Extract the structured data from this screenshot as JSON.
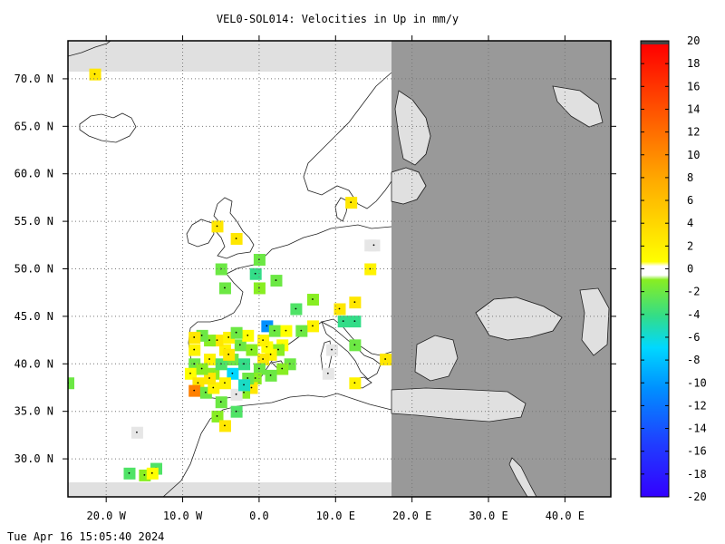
{
  "title": "VEL0-SOL014: Velocities in Up in mm/y",
  "timestamp": "Tue Apr 16 15:05:40 2024",
  "map": {
    "lon_range": [
      -25,
      46
    ],
    "lat_range": [
      26,
      74
    ],
    "lat_ticks": [
      {
        "value": 70,
        "label": "70.0 N"
      },
      {
        "value": 65,
        "label": "65.0 N"
      },
      {
        "value": 60,
        "label": "60.0 N"
      },
      {
        "value": 55,
        "label": "55.0 N"
      },
      {
        "value": 50,
        "label": "50.0 N"
      },
      {
        "value": 45,
        "label": "45.0 N"
      },
      {
        "value": 40,
        "label": "40.0 N"
      },
      {
        "value": 35,
        "label": "35.0 N"
      },
      {
        "value": 30,
        "label": "30.0 N"
      }
    ],
    "lon_ticks": [
      {
        "value": -20,
        "label": "20.0 W"
      },
      {
        "value": -10,
        "label": "10.0 W"
      },
      {
        "value": 0,
        "label": "0.0"
      },
      {
        "value": 10,
        "label": "10.0 E"
      },
      {
        "value": 20,
        "label": "20.0 E"
      },
      {
        "value": 30,
        "label": "30.0 E"
      },
      {
        "value": 40,
        "label": "40.0 E"
      }
    ],
    "grid": "dotted",
    "colors": {
      "land": "#e0e0e0",
      "no_data": "#999999",
      "data_area": "#ffffff",
      "coast": "#222222"
    }
  },
  "colorbar": {
    "min": -20,
    "max": 20,
    "labels": [
      "20",
      "18",
      "16",
      "14",
      "12",
      "10",
      "8",
      "6",
      "4",
      "2",
      "0",
      "-2",
      "-4",
      "-6",
      "-8",
      "-10",
      "-12",
      "-14",
      "-16",
      "-18",
      "-20"
    ]
  },
  "stations": [
    {
      "lon": -21.5,
      "lat": 70.5,
      "v": 3
    },
    {
      "lon": -25.0,
      "lat": 38.0,
      "v": -2
    },
    {
      "lon": -17.0,
      "lat": 28.5,
      "v": -3
    },
    {
      "lon": -15.0,
      "lat": 28.3,
      "v": -1
    },
    {
      "lon": -13.5,
      "lat": 29.0,
      "v": -3
    },
    {
      "lon": -14.0,
      "lat": 28.5,
      "v": 1
    },
    {
      "lon": -16.0,
      "lat": 32.8,
      "v": 0
    },
    {
      "lon": -5.5,
      "lat": 54.5,
      "v": 3
    },
    {
      "lon": -3.0,
      "lat": 53.2,
      "v": 3
    },
    {
      "lon": -5.0,
      "lat": 50.0,
      "v": -2
    },
    {
      "lon": -4.5,
      "lat": 48.0,
      "v": -2
    },
    {
      "lon": 0.0,
      "lat": 51.0,
      "v": -2
    },
    {
      "lon": -0.5,
      "lat": 49.5,
      "v": -4
    },
    {
      "lon": 0.0,
      "lat": 48.0,
      "v": -1
    },
    {
      "lon": 2.2,
      "lat": 48.8,
      "v": -2
    },
    {
      "lon": 4.8,
      "lat": 45.8,
      "v": -3
    },
    {
      "lon": 7.0,
      "lat": 46.8,
      "v": -1
    },
    {
      "lon": 7.0,
      "lat": 44.0,
      "v": 2
    },
    {
      "lon": 10.5,
      "lat": 45.8,
      "v": 3
    },
    {
      "lon": 12.5,
      "lat": 46.5,
      "v": 3
    },
    {
      "lon": 11.0,
      "lat": 44.5,
      "v": -4
    },
    {
      "lon": 12.5,
      "lat": 44.5,
      "v": -4
    },
    {
      "lon": 12.5,
      "lat": 42.0,
      "v": -2
    },
    {
      "lon": 12.5,
      "lat": 38.0,
      "v": 2
    },
    {
      "lon": 16.5,
      "lat": 40.5,
      "v": 3
    },
    {
      "lon": 12.0,
      "lat": 57.0,
      "v": 3
    },
    {
      "lon": 14.5,
      "lat": 52.5,
      "v": 0
    },
    {
      "lon": 14.5,
      "lat": 50.0,
      "v": 2
    },
    {
      "lon": 1.0,
      "lat": 44.0,
      "v": -8
    },
    {
      "lon": 4.0,
      "lat": 40.0,
      "v": -2
    },
    {
      "lon": 3.0,
      "lat": 42.0,
      "v": 1
    },
    {
      "lon": 2.5,
      "lat": 41.5,
      "v": -1
    },
    {
      "lon": 1.5,
      "lat": 41.0,
      "v": 2
    },
    {
      "lon": 1.0,
      "lat": 41.8,
      "v": 1
    },
    {
      "lon": 0.5,
      "lat": 40.5,
      "v": 3
    },
    {
      "lon": 0.0,
      "lat": 39.5,
      "v": -2
    },
    {
      "lon": -0.5,
      "lat": 38.5,
      "v": -1
    },
    {
      "lon": -1.0,
      "lat": 37.5,
      "v": 3
    },
    {
      "lon": -2.0,
      "lat": 37.0,
      "v": -1
    },
    {
      "lon": -3.0,
      "lat": 36.8,
      "v": 0
    },
    {
      "lon": -3.5,
      "lat": 39.0,
      "v": -6
    },
    {
      "lon": -3.5,
      "lat": 40.5,
      "v": -2
    },
    {
      "lon": -4.5,
      "lat": 41.5,
      "v": 2
    },
    {
      "lon": -5.5,
      "lat": 42.5,
      "v": 3
    },
    {
      "lon": -6.5,
      "lat": 42.5,
      "v": -1
    },
    {
      "lon": -7.5,
      "lat": 43.0,
      "v": -2
    },
    {
      "lon": -8.5,
      "lat": 42.8,
      "v": 3
    },
    {
      "lon": -8.5,
      "lat": 41.5,
      "v": 2
    },
    {
      "lon": -8.5,
      "lat": 40.0,
      "v": -2
    },
    {
      "lon": -9.0,
      "lat": 39.0,
      "v": 1
    },
    {
      "lon": -8.0,
      "lat": 38.0,
      "v": 3
    },
    {
      "lon": -8.5,
      "lat": 37.2,
      "v": 11
    },
    {
      "lon": -7.0,
      "lat": 37.0,
      "v": -2
    },
    {
      "lon": -6.0,
      "lat": 37.5,
      "v": 2
    },
    {
      "lon": -6.0,
      "lat": 39.0,
      "v": -1
    },
    {
      "lon": -6.5,
      "lat": 40.5,
      "v": 2
    },
    {
      "lon": -5.0,
      "lat": 40.0,
      "v": -3
    },
    {
      "lon": -4.5,
      "lat": 38.0,
      "v": 2
    },
    {
      "lon": -5.0,
      "lat": 36.0,
      "v": -2
    },
    {
      "lon": -5.5,
      "lat": 34.5,
      "v": -1
    },
    {
      "lon": -4.5,
      "lat": 33.5,
      "v": 3
    },
    {
      "lon": -3.0,
      "lat": 35.0,
      "v": -3
    },
    {
      "lon": -2.5,
      "lat": 42.0,
      "v": -2
    },
    {
      "lon": -1.5,
      "lat": 43.0,
      "v": 1
    },
    {
      "lon": -1.0,
      "lat": 41.5,
      "v": -1
    },
    {
      "lon": -2.0,
      "lat": 40.0,
      "v": -4
    },
    {
      "lon": -1.5,
      "lat": 38.5,
      "v": -2
    },
    {
      "lon": 0.5,
      "lat": 42.5,
      "v": 2
    },
    {
      "lon": 2.0,
      "lat": 43.5,
      "v": -2
    },
    {
      "lon": 3.5,
      "lat": 43.5,
      "v": 1
    },
    {
      "lon": 5.5,
      "lat": 43.5,
      "v": -2
    },
    {
      "lon": 3.0,
      "lat": 39.5,
      "v": -1
    },
    {
      "lon": 1.5,
      "lat": 38.8,
      "v": -2
    },
    {
      "lon": -2.0,
      "lat": 37.8,
      "v": -5
    },
    {
      "lon": -4.0,
      "lat": 42.8,
      "v": 2
    },
    {
      "lon": -3.0,
      "lat": 43.3,
      "v": -2
    },
    {
      "lon": -6.5,
      "lat": 38.5,
      "v": 3
    },
    {
      "lon": -7.5,
      "lat": 39.5,
      "v": -1
    },
    {
      "lon": -4.0,
      "lat": 41.0,
      "v": 3
    },
    {
      "lon": 9.5,
      "lat": 41.5,
      "v": 0
    },
    {
      "lon": 9.0,
      "lat": 39.0,
      "v": 0
    },
    {
      "lon": 15.0,
      "lat": 52.5,
      "v": 0
    }
  ]
}
